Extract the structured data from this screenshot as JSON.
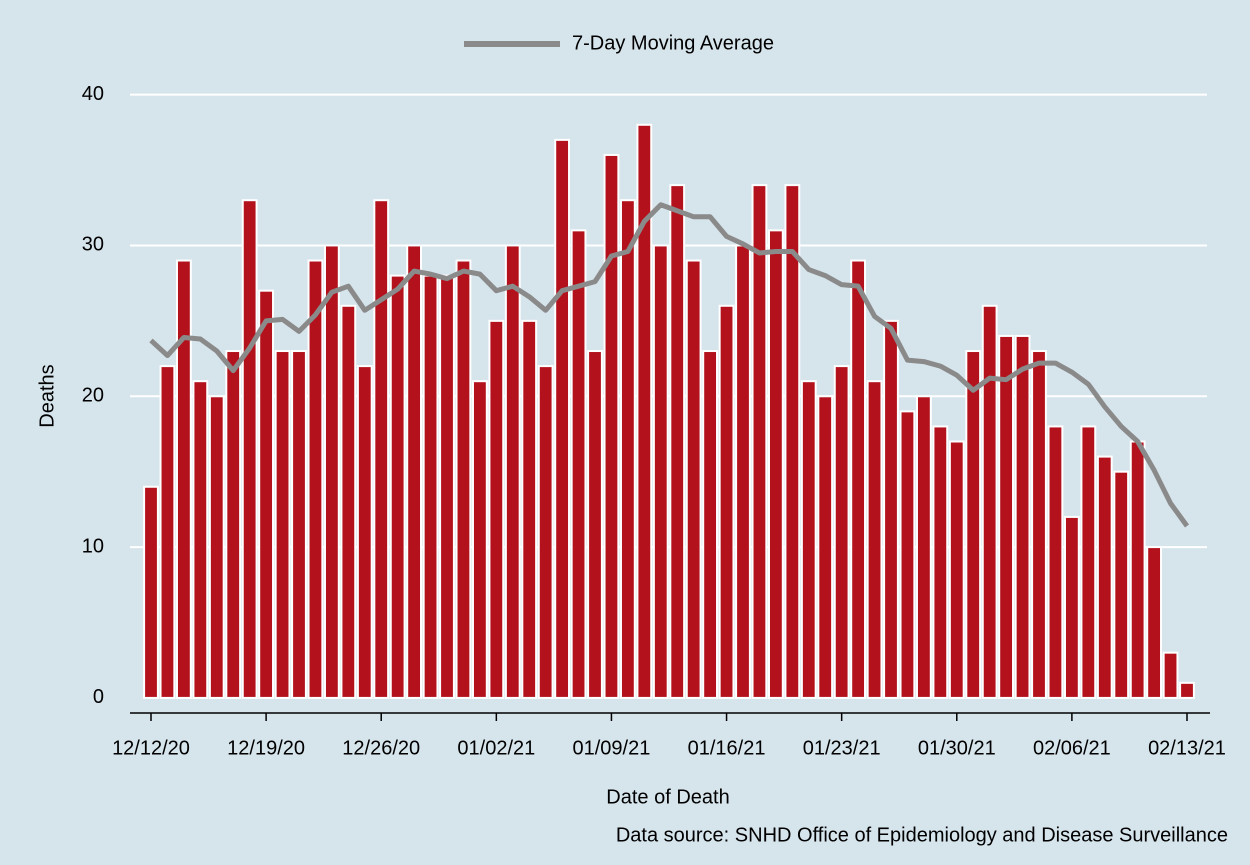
{
  "chart_data": {
    "type": "bar",
    "x_label": "Date of Death",
    "y_label": "Deaths",
    "note": "Data source: SNHD Office of Epidemiology and Disease Surveillance",
    "categories": [
      "12/12/20",
      null,
      null,
      null,
      null,
      null,
      null,
      "12/19/20",
      null,
      null,
      null,
      null,
      null,
      null,
      "12/26/20",
      null,
      null,
      null,
      null,
      null,
      null,
      "01/02/21",
      null,
      null,
      null,
      null,
      null,
      null,
      "01/09/21",
      null,
      null,
      null,
      null,
      null,
      null,
      "01/16/21",
      null,
      null,
      null,
      null,
      null,
      null,
      "01/23/21",
      null,
      null,
      null,
      null,
      null,
      null,
      "01/30/21",
      null,
      null,
      null,
      null,
      null,
      null,
      "02/06/21",
      null,
      null,
      null,
      null,
      null,
      null,
      "02/13/21"
    ],
    "series": [
      {
        "type": "bar",
        "color": "#b3121d",
        "values": [
          14,
          22,
          29,
          21,
          20,
          23,
          33,
          27,
          23,
          23,
          29,
          30,
          26,
          22,
          33,
          28,
          30,
          28,
          28,
          29,
          21,
          25,
          30,
          25,
          22,
          37,
          31,
          23,
          36,
          33,
          38,
          30,
          34,
          29,
          23,
          26,
          30,
          34,
          31,
          34,
          21,
          20,
          22,
          29,
          21,
          25,
          19,
          20,
          18,
          17,
          23,
          26,
          24,
          24,
          23,
          18,
          12,
          18,
          16,
          15,
          17,
          10,
          3,
          1
        ]
      },
      {
        "type": "line",
        "name": "7-Day Moving Average",
        "color": "#8a8a8a",
        "values": [
          23.7,
          22.7,
          23.9,
          23.8,
          23.0,
          21.7,
          23.2,
          25.0,
          25.1,
          24.3,
          25.4,
          26.9,
          27.3,
          25.7,
          26.4,
          27.1,
          28.3,
          28.1,
          27.8,
          28.3,
          28.1,
          27.0,
          27.3,
          26.6,
          25.7,
          27.0,
          27.3,
          27.6,
          29.3,
          29.6,
          31.6,
          32.7,
          32.3,
          31.9,
          31.9,
          30.6,
          30.1,
          29.5,
          29.6,
          29.6,
          28.4,
          28.0,
          27.4,
          27.3,
          25.3,
          24.5,
          22.4,
          22.3,
          22.0,
          21.4,
          20.4,
          21.2,
          21.1,
          21.8,
          22.2,
          22.2,
          21.6,
          20.8,
          19.3,
          18.0,
          17.0,
          15.1,
          12.9,
          11.4
        ]
      }
    ],
    "ylim": [
      -1,
      41.5
    ],
    "yticks": [
      0,
      10,
      20,
      30,
      40
    ],
    "grid": true,
    "legend": "top"
  }
}
